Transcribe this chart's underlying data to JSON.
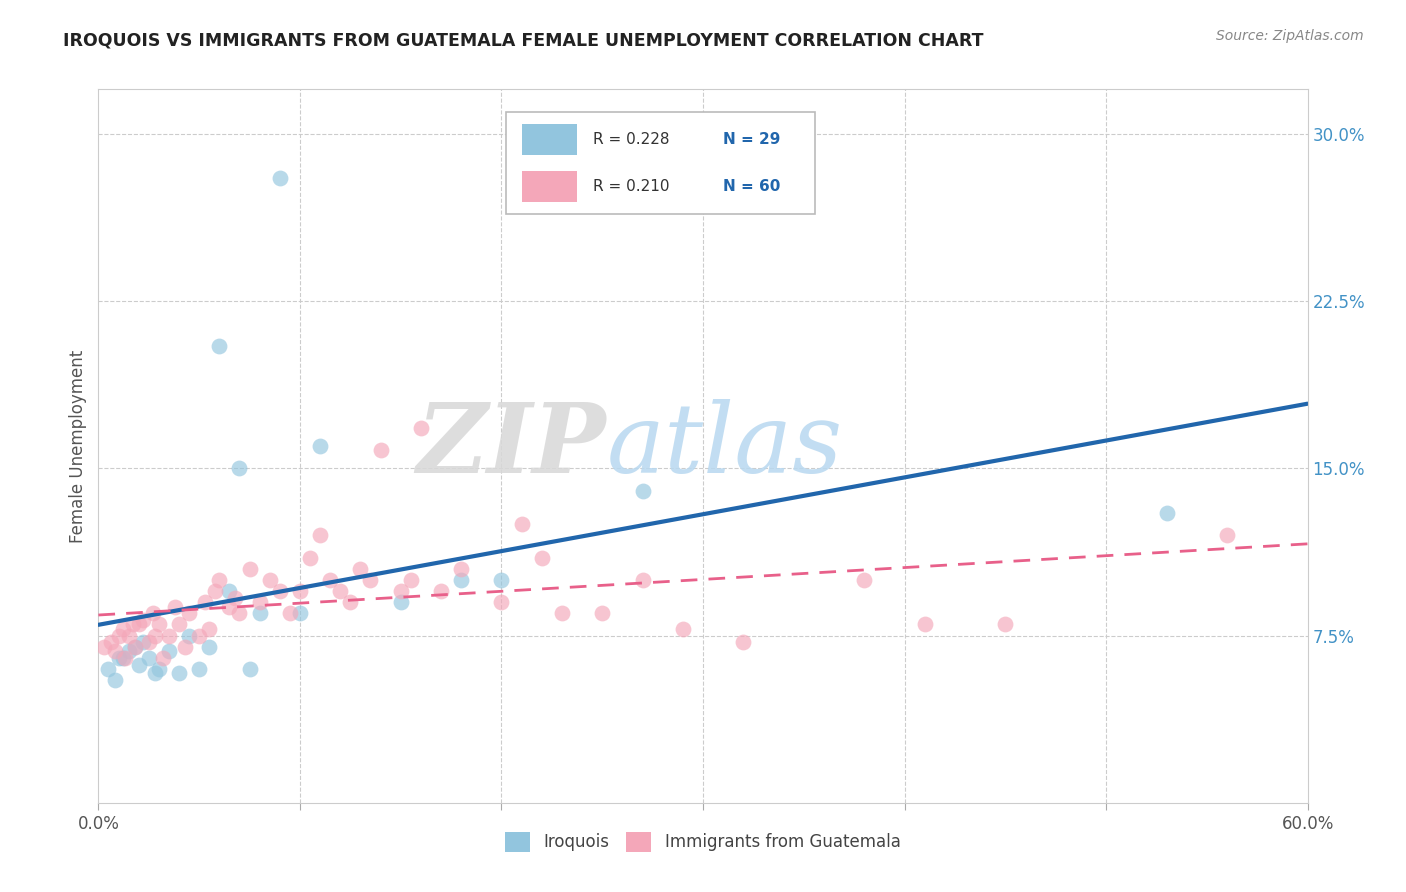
{
  "title": "IROQUOIS VS IMMIGRANTS FROM GUATEMALA FEMALE UNEMPLOYMENT CORRELATION CHART",
  "source": "Source: ZipAtlas.com",
  "ylabel": "Female Unemployment",
  "xlim": [
    0.0,
    0.6
  ],
  "ylim": [
    0.0,
    0.32
  ],
  "x_ticks": [
    0.0,
    0.1,
    0.2,
    0.3,
    0.4,
    0.5,
    0.6
  ],
  "x_tick_labels": [
    "0.0%",
    "",
    "",
    "",
    "",
    "",
    "60.0%"
  ],
  "y_ticks_right": [
    0.075,
    0.15,
    0.225,
    0.3
  ],
  "y_tick_labels_right": [
    "7.5%",
    "15.0%",
    "22.5%",
    "30.0%"
  ],
  "legend_labels": [
    "Iroquois",
    "Immigrants from Guatemala"
  ],
  "color_blue": "#92c5de",
  "color_pink": "#f4a7b9",
  "color_blue_line": "#2166ac",
  "color_pink_line": "#e8608a",
  "watermark_zip": "ZIP",
  "watermark_atlas": "atlas",
  "iroquois_x": [
    0.005,
    0.008,
    0.01,
    0.012,
    0.015,
    0.018,
    0.02,
    0.022,
    0.025,
    0.028,
    0.03,
    0.035,
    0.04,
    0.045,
    0.05,
    0.055,
    0.06,
    0.065,
    0.07,
    0.075,
    0.08,
    0.09,
    0.1,
    0.11,
    0.15,
    0.18,
    0.2,
    0.27,
    0.53
  ],
  "iroquois_y": [
    0.06,
    0.055,
    0.065,
    0.065,
    0.068,
    0.07,
    0.062,
    0.072,
    0.065,
    0.058,
    0.06,
    0.068,
    0.058,
    0.075,
    0.06,
    0.07,
    0.205,
    0.095,
    0.15,
    0.06,
    0.085,
    0.28,
    0.085,
    0.16,
    0.09,
    0.1,
    0.1,
    0.14,
    0.13
  ],
  "guatemala_x": [
    0.003,
    0.006,
    0.008,
    0.01,
    0.012,
    0.013,
    0.015,
    0.017,
    0.018,
    0.02,
    0.022,
    0.025,
    0.027,
    0.028,
    0.03,
    0.032,
    0.035,
    0.038,
    0.04,
    0.043,
    0.045,
    0.05,
    0.053,
    0.055,
    0.058,
    0.06,
    0.065,
    0.068,
    0.07,
    0.075,
    0.08,
    0.085,
    0.09,
    0.095,
    0.1,
    0.105,
    0.11,
    0.115,
    0.12,
    0.125,
    0.13,
    0.135,
    0.14,
    0.15,
    0.155,
    0.16,
    0.17,
    0.18,
    0.2,
    0.21,
    0.22,
    0.23,
    0.25,
    0.27,
    0.29,
    0.32,
    0.38,
    0.41,
    0.45,
    0.56
  ],
  "guatemala_y": [
    0.07,
    0.072,
    0.068,
    0.075,
    0.078,
    0.065,
    0.075,
    0.08,
    0.07,
    0.08,
    0.082,
    0.072,
    0.085,
    0.075,
    0.08,
    0.065,
    0.075,
    0.088,
    0.08,
    0.07,
    0.085,
    0.075,
    0.09,
    0.078,
    0.095,
    0.1,
    0.088,
    0.092,
    0.085,
    0.105,
    0.09,
    0.1,
    0.095,
    0.085,
    0.095,
    0.11,
    0.12,
    0.1,
    0.095,
    0.09,
    0.105,
    0.1,
    0.158,
    0.095,
    0.1,
    0.168,
    0.095,
    0.105,
    0.09,
    0.125,
    0.11,
    0.085,
    0.085,
    0.1,
    0.078,
    0.072,
    0.1,
    0.08,
    0.08,
    0.12
  ]
}
